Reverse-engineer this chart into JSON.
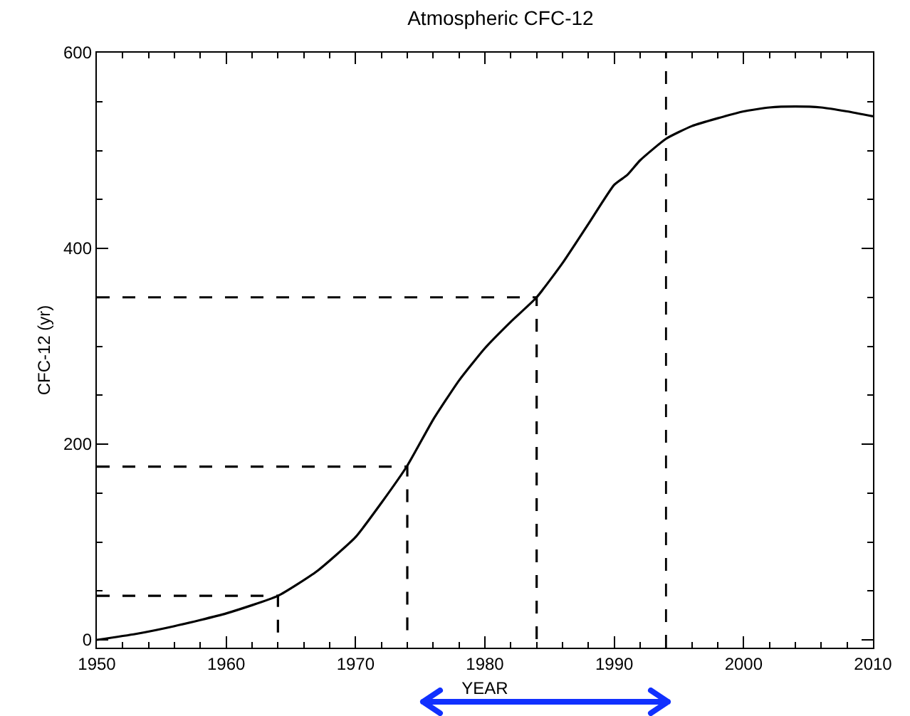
{
  "chart_data": {
    "type": "line",
    "title": "Atmospheric CFC-12",
    "xlabel": "YEAR",
    "ylabel": "CFC-12 (yr)",
    "xlim": [
      1950,
      2010
    ],
    "ylim": [
      -8,
      600
    ],
    "xticks": [
      1950,
      {
        "value": 1952,
        "label": null
      },
      {
        "value": 1954,
        "label": null
      },
      {
        "value": 1956,
        "label": null
      },
      {
        "value": 1958,
        "label": null
      },
      1960,
      {
        "value": 1962,
        "label": null
      },
      {
        "value": 1964,
        "label": null
      },
      {
        "value": 1966,
        "label": null
      },
      {
        "value": 1968,
        "label": null
      },
      1970,
      {
        "value": 1972,
        "label": null
      },
      {
        "value": 1974,
        "label": null
      },
      {
        "value": 1976,
        "label": null
      },
      {
        "value": 1978,
        "label": null
      },
      1980,
      {
        "value": 1982,
        "label": null
      },
      {
        "value": 1984,
        "label": null
      },
      {
        "value": 1986,
        "label": null
      },
      {
        "value": 1988,
        "label": null
      },
      1990,
      {
        "value": 1992,
        "label": null
      },
      {
        "value": 1994,
        "label": null
      },
      {
        "value": 1996,
        "label": null
      },
      {
        "value": 1998,
        "label": null
      },
      2000,
      {
        "value": 2002,
        "label": null
      },
      {
        "value": 2004,
        "label": null
      },
      {
        "value": 2006,
        "label": null
      },
      {
        "value": 2008,
        "label": null
      },
      2010
    ],
    "yticks": [
      0,
      {
        "value": 50,
        "label": null
      },
      {
        "value": 100,
        "label": null
      },
      {
        "value": 150,
        "label": null
      },
      200,
      {
        "value": 250,
        "label": null
      },
      {
        "value": 300,
        "label": null
      },
      {
        "value": 350,
        "label": null
      },
      400,
      {
        "value": 450,
        "label": null
      },
      {
        "value": 500,
        "label": null
      },
      {
        "value": 550,
        "label": null
      },
      600
    ],
    "grid": false,
    "marker": "none",
    "line_style": "solid",
    "series": [
      {
        "color": "#000000",
        "x": [
          1950,
          1953,
          1956,
          1960,
          1964,
          1967,
          1970,
          1972,
          1974,
          1976,
          1978,
          1980,
          1982,
          1984,
          1986,
          1988,
          1990,
          1991,
          1992,
          1994,
          1996,
          1998,
          2000,
          2002,
          2004,
          2006,
          2008,
          2010
        ],
        "values": [
          0,
          6,
          14,
          27,
          45,
          70,
          105,
          140,
          178,
          225,
          265,
          298,
          325,
          350,
          385,
          425,
          465,
          475,
          490,
          512,
          525,
          533,
          540,
          544,
          545,
          544,
          540,
          535
        ]
      },
      {
        "color": "#000000",
        "line_style": "dashed",
        "x": [
          1950,
          1964,
          1964
        ],
        "values": [
          45,
          45,
          0
        ]
      },
      {
        "color": "#000000",
        "line_style": "dashed",
        "x": [
          1950,
          1974,
          1974
        ],
        "values": [
          177,
          177,
          0
        ]
      },
      {
        "color": "#000000",
        "line_style": "dashed",
        "x": [
          1950,
          1984,
          1984
        ],
        "values": [
          350,
          350,
          0
        ]
      }
    ],
    "ref_lines": [
      {
        "axis": "x",
        "value": 1994,
        "color": "#000000",
        "line_style": "dashed"
      }
    ]
  }
}
